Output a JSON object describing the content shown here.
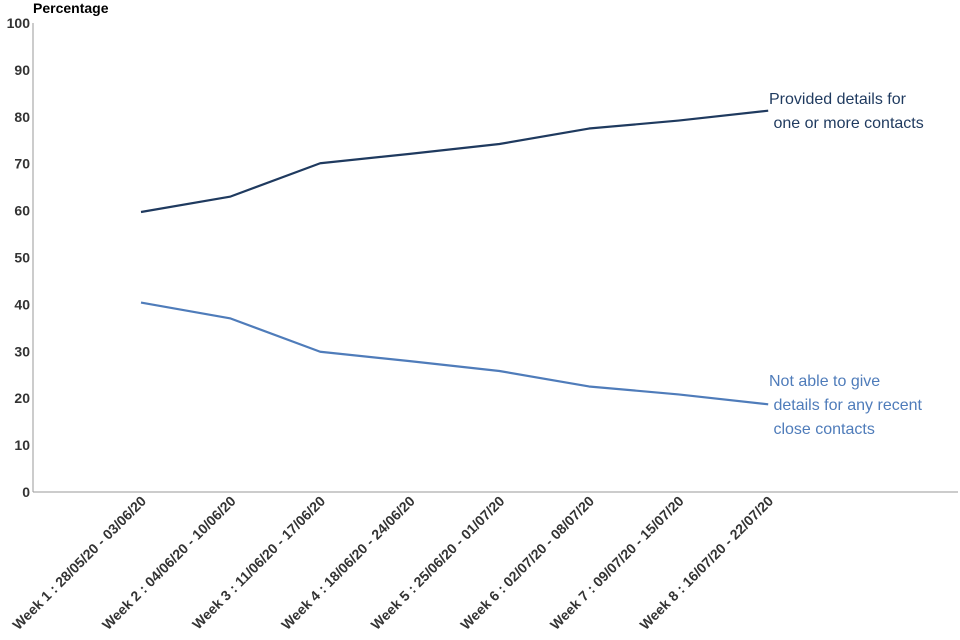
{
  "chart_data": {
    "type": "line",
    "title": "",
    "ylabel": "Percentage",
    "xlabel": "",
    "ylim": [
      0,
      100
    ],
    "yticks": [
      0,
      10,
      20,
      30,
      40,
      50,
      60,
      70,
      80,
      90,
      100
    ],
    "categories": [
      "Week 1 : 28/05/20 - 03/06/20",
      "Week 2 : 04/06/20 - 10/06/20",
      "Week 3 : 11/06/20 - 17/06/20",
      "Week 4 : 18/06/20 - 24/06/20",
      "Week 5 : 25/06/20 - 01/07/20",
      "Week 6 : 02/07/20 - 08/07/20",
      "Week 7 : 09/07/20 - 15/07/20",
      "Week 8 : 16/07/20 - 22/07/20"
    ],
    "series": [
      {
        "name": "Provided details for one or more contacts",
        "label_lines": [
          "Provided details for",
          " one or more contacts"
        ],
        "color": "#1f3a5f",
        "values": [
          59.7,
          63.0,
          70.1,
          72.1,
          74.2,
          77.5,
          79.2,
          81.3
        ]
      },
      {
        "name": "Not able to give details for any recent close contacts",
        "label_lines": [
          "Not able to give",
          " details for any recent",
          " close contacts"
        ],
        "color": "#4f7cba",
        "values": [
          40.4,
          37.0,
          29.9,
          27.9,
          25.8,
          22.5,
          20.8,
          18.7
        ]
      }
    ],
    "grid": false,
    "legend": "inline labels at line ends"
  }
}
